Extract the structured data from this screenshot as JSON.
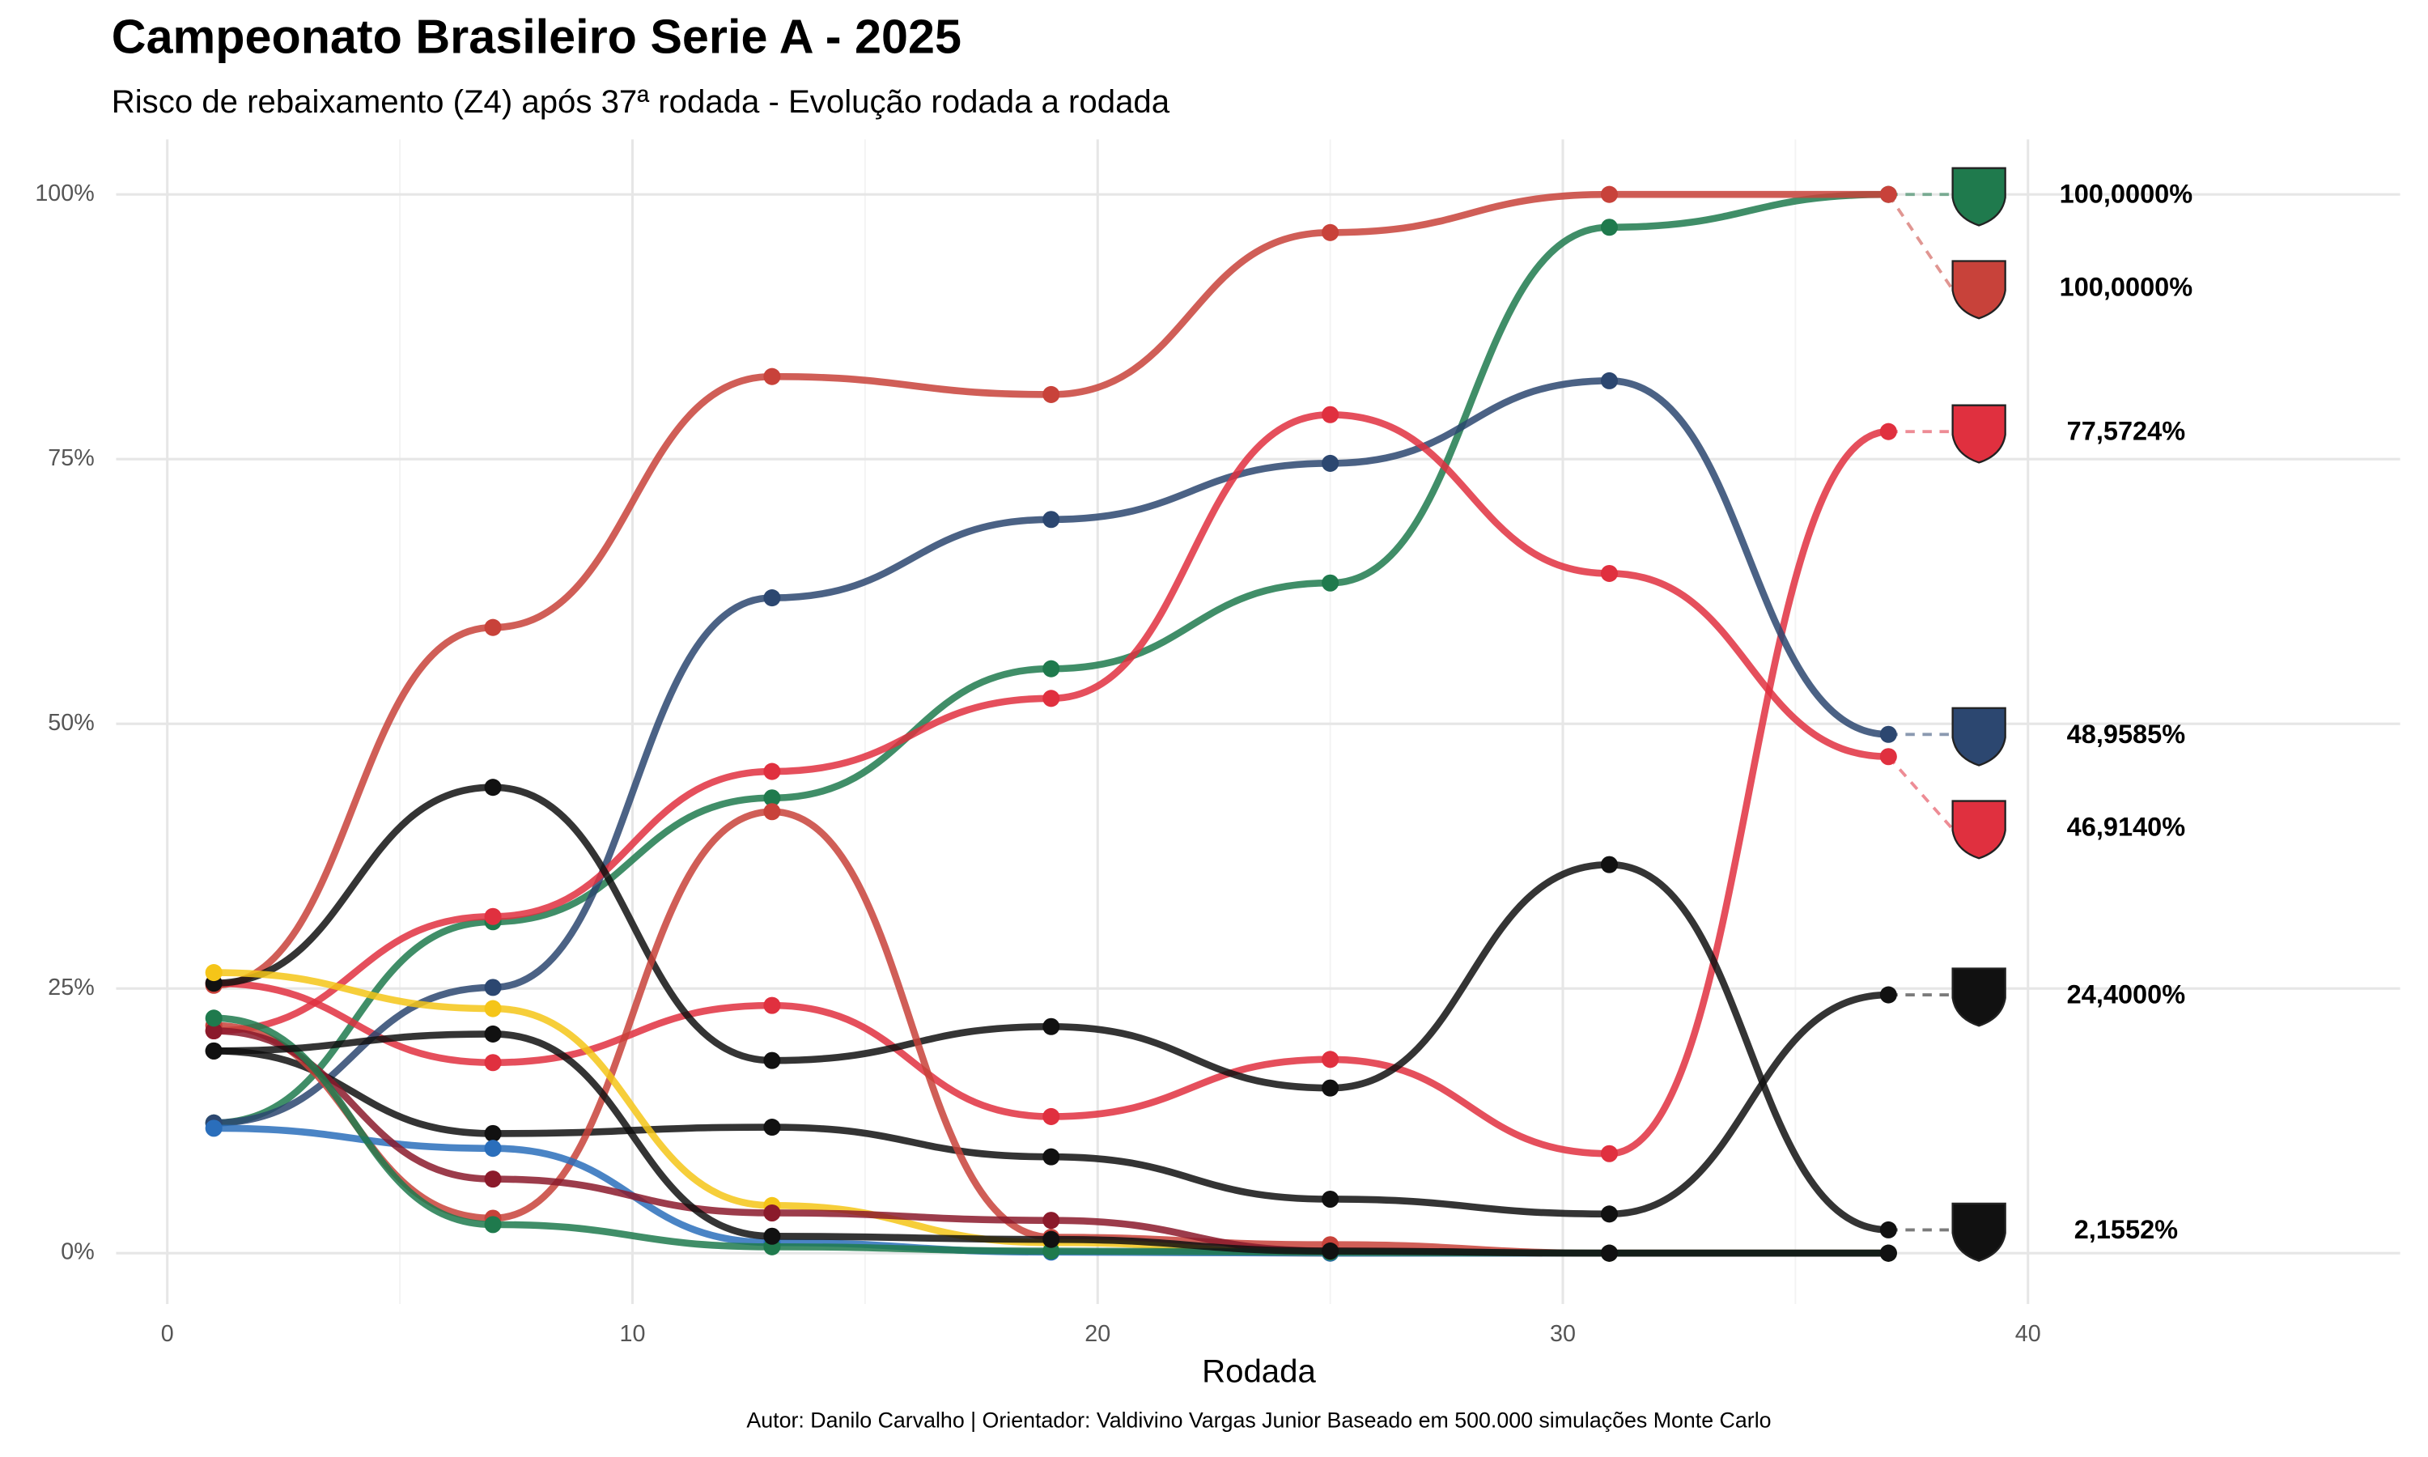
{
  "chart_data": {
    "type": "line",
    "title": "Campeonato Brasileiro Serie A - 2025",
    "subtitle": "Risco de rebaixamento (Z4) após 37ª rodada - Evolução rodada a rodada",
    "x_label": "Rodada",
    "caption": "Autor: Danilo Carvalho | Orientador: Valdivino Vargas Junior Baseado em 500.000 simulações Monte Carlo",
    "x": [
      1,
      7,
      13,
      19,
      25,
      31,
      37
    ],
    "xlim": [
      -1.1,
      48
    ],
    "xticks": [
      0,
      10,
      20,
      30,
      40
    ],
    "ylim": [
      -4.8,
      105.2
    ],
    "yticks": [
      {
        "value": 0,
        "label": "0%"
      },
      {
        "value": 25,
        "label": "25%"
      },
      {
        "value": 50,
        "label": "50%"
      },
      {
        "value": 75,
        "label": "75%"
      },
      {
        "value": 100,
        "label": "100%"
      }
    ],
    "grid": true,
    "series": [
      {
        "color": "#1f7a4d",
        "values": [
          12.3,
          31.3,
          43.0,
          55.2,
          63.3,
          96.9,
          100
        ],
        "value_labels": [
          null,
          null,
          null,
          null,
          null,
          null,
          "100,0000%"
        ]
      },
      {
        "color": "#c8423a",
        "values": [
          25.3,
          59.1,
          82.8,
          81.1,
          96.4,
          100,
          100
        ],
        "value_labels": [
          null,
          null,
          null,
          null,
          null,
          null,
          "100,0000%"
        ]
      },
      {
        "color": "#e0303f",
        "values": [
          25.5,
          18.0,
          23.4,
          12.9,
          18.3,
          9.4,
          77.6
        ],
        "value_labels": [
          null,
          null,
          null,
          null,
          null,
          null,
          "77,5724%"
        ]
      },
      {
        "color": "#2c4770",
        "values": [
          12.3,
          25.1,
          61.9,
          69.3,
          74.6,
          82.4,
          49.0
        ],
        "value_labels": [
          null,
          null,
          null,
          null,
          null,
          null,
          "48,9585%"
        ]
      },
      {
        "color": "#e0303f",
        "values": [
          21.0,
          31.8,
          45.5,
          52.4,
          79.2,
          64.2,
          46.9
        ],
        "value_labels": [
          null,
          null,
          null,
          null,
          null,
          null,
          "46,9140%"
        ]
      },
      {
        "color": "#111111",
        "values": [
          19.1,
          11.3,
          11.9,
          9.1,
          5.1,
          3.7,
          24.4
        ],
        "value_labels": [
          null,
          null,
          null,
          null,
          null,
          null,
          "24,4000%"
        ]
      },
      {
        "color": "#111111",
        "values": [
          25.5,
          44.0,
          18.2,
          21.4,
          15.6,
          36.7,
          2.2
        ],
        "value_labels": [
          null,
          null,
          null,
          null,
          null,
          null,
          "2,1552%"
        ]
      },
      {
        "color": "#c8423a",
        "values": [
          21.5,
          3.3,
          41.7,
          1.5,
          0.8,
          0,
          0
        ]
      },
      {
        "color": "#f5c518",
        "values": [
          26.5,
          23.1,
          4.5,
          1.0,
          0,
          0,
          0
        ]
      },
      {
        "color": "#2a6ebb",
        "values": [
          11.8,
          9.9,
          1.0,
          0.1,
          0,
          0,
          0
        ]
      },
      {
        "color": "#8b1a2b",
        "values": [
          21.0,
          7.0,
          3.8,
          3.1,
          0.2,
          0,
          0
        ]
      },
      {
        "color": "#1f7a4d",
        "values": [
          22.2,
          2.7,
          0.6,
          0.2,
          0.1,
          0,
          0
        ]
      },
      {
        "color": "#111111",
        "values": [
          19.1,
          20.7,
          1.6,
          1.3,
          0.2,
          0,
          0
        ]
      }
    ]
  }
}
